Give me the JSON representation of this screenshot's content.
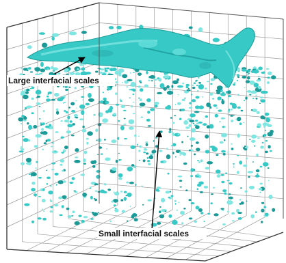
{
  "annotations": {
    "large_scales": "Large interfacial scales",
    "small_scales": "Small interfacial scales"
  },
  "colors": {
    "interface": "#37c9c6",
    "interface_dark": "#1c9a98",
    "interface_light": "#7fe6e2",
    "grid": "#9a9a9a",
    "box_edge": "#333333",
    "arrow": "#000000"
  }
}
